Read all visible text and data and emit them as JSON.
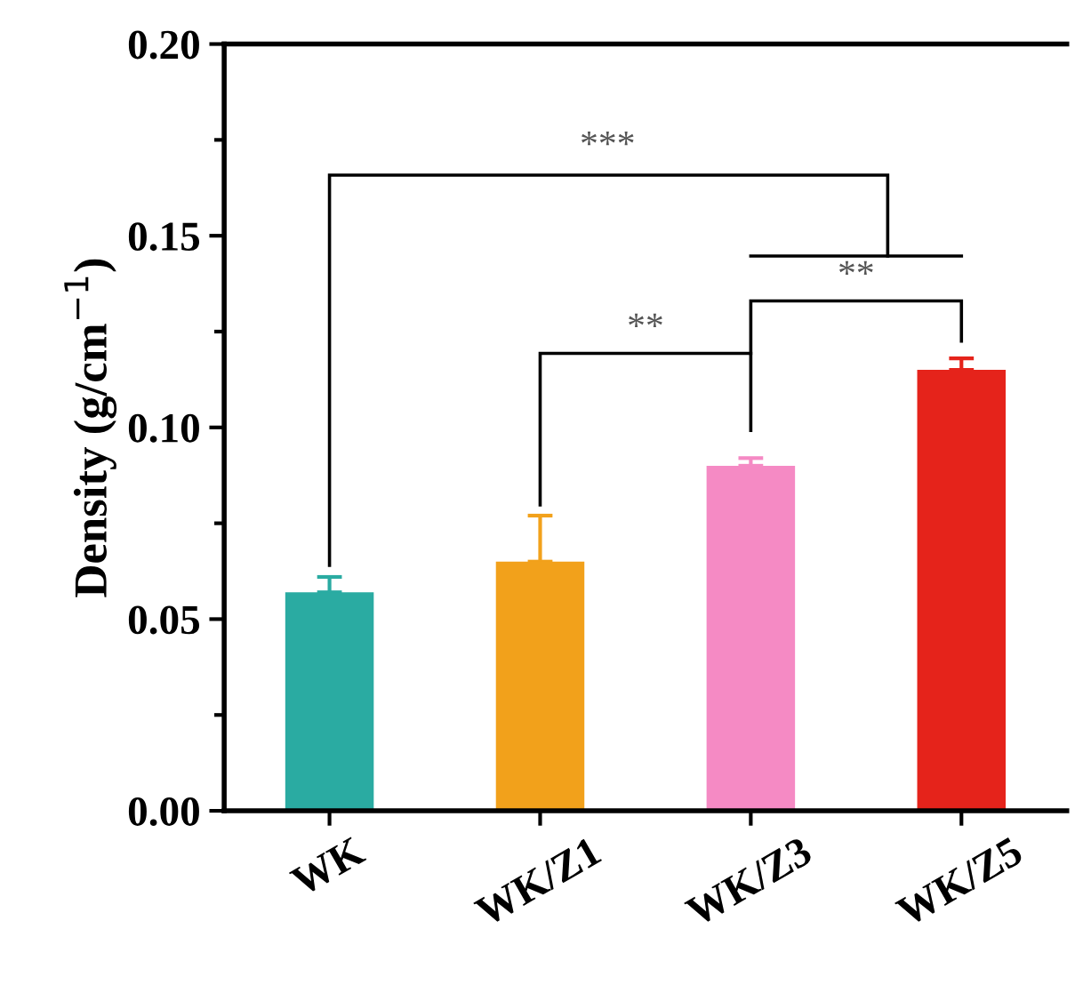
{
  "chart_data": {
    "type": "bar",
    "ylabel": "Density (g/cm$^{−1}$)",
    "categories": [
      "WK",
      "WK/Z1",
      "WK/Z3",
      "WK/Z5"
    ],
    "values": [
      0.057,
      0.065,
      0.09,
      0.115
    ],
    "errors": [
      [
        0.057,
        0.061
      ],
      [
        0.065,
        0.077
      ],
      [
        0.09,
        0.092
      ],
      [
        0.115,
        0.118
      ]
    ],
    "colors": [
      "#2aaba2",
      "#f2a11b",
      "#f58ac4",
      "#e5231b"
    ],
    "ylim": [
      0,
      0.2
    ],
    "yticks": [
      {
        "value": 0,
        "label": "0.00"
      },
      {
        "value": 0.05,
        "label": "0.05"
      },
      {
        "value": 0.1,
        "label": "0.10"
      },
      {
        "value": 0.15,
        "label": "0.15"
      },
      {
        "value": 0.2,
        "label": "0.20"
      }
    ],
    "grid": false,
    "legend": false,
    "annotations": [
      "***",
      "**",
      "**"
    ]
  }
}
